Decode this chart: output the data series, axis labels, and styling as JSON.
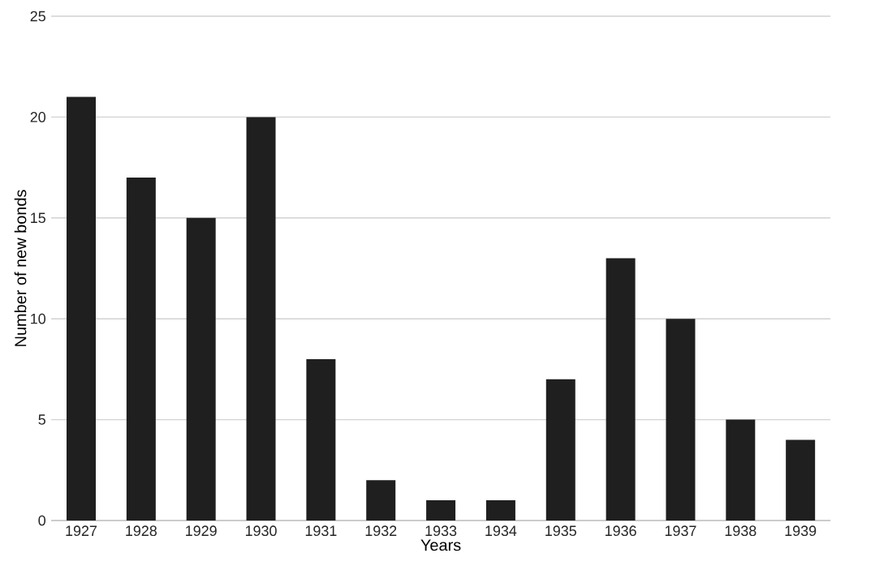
{
  "chart_data": {
    "type": "bar",
    "xlabel": "Years",
    "ylabel": "Number of new bonds",
    "categories": [
      "1927",
      "1928",
      "1929",
      "1930",
      "1931",
      "1932",
      "1933",
      "1934",
      "1935",
      "1936",
      "1937",
      "1938",
      "1939"
    ],
    "values": [
      21,
      17,
      15,
      20,
      8,
      2,
      1,
      1,
      7,
      13,
      10,
      5,
      4
    ],
    "color": "#1f1f1f",
    "ylim": [
      0,
      25
    ],
    "yticks": [
      0,
      5,
      10,
      15,
      20,
      25
    ],
    "grid": "y"
  }
}
